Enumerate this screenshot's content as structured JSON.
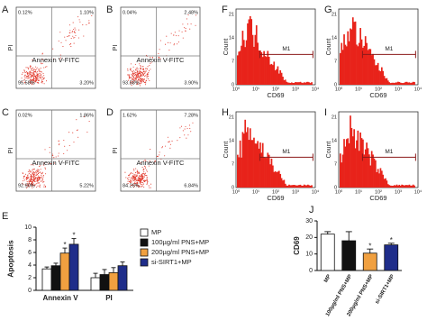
{
  "flow_cytometry": {
    "x_label": "Annexin V-FITC",
    "y_label": "PI",
    "panels": [
      {
        "label": "A",
        "upper_left": "0.12%",
        "upper_right": "1.10%",
        "lower_left": "95.58%",
        "lower_right": "3.20%"
      },
      {
        "label": "B",
        "upper_left": "0.04%",
        "upper_right": "2.48%",
        "lower_left": "93.58%",
        "lower_right": "3.90%"
      },
      {
        "label": "C",
        "upper_left": "0.02%",
        "upper_right": "1.86%",
        "lower_left": "92.90%",
        "lower_right": "5.22%"
      },
      {
        "label": "D",
        "upper_left": "1.62%",
        "upper_right": "7.28%",
        "lower_left": "84.26%",
        "lower_right": "6.84%"
      }
    ]
  },
  "cd69_histograms": {
    "y_label": "Count",
    "x_label": "CD69",
    "gate": "M1",
    "x_tick_labels": [
      "10⁰",
      "10¹",
      "10²",
      "10³",
      "10⁴"
    ],
    "panels": [
      {
        "label": "F",
        "y_tick_labels": [
          "0",
          "7",
          "14",
          "21"
        ]
      },
      {
        "label": "G",
        "y_tick_labels": [
          "0",
          "7",
          "14",
          "21"
        ]
      },
      {
        "label": "H",
        "y_tick_labels": [
          "0",
          "7",
          "14",
          "21"
        ]
      },
      {
        "label": "I",
        "y_tick_labels": [
          "0",
          "7",
          "14",
          "21"
        ]
      }
    ]
  },
  "chart_data": [
    {
      "panel_label": "E",
      "type": "bar",
      "ylabel": "Apoptosis",
      "categories": [
        "Annexin V",
        "PI"
      ],
      "series": [
        {
          "name": "MP",
          "color": "#ffffff",
          "values": [
            3.4,
            2.0
          ],
          "errors": [
            0.3,
            0.7
          ]
        },
        {
          "name": "100µg/ml PNS+MP",
          "color": "#111111",
          "values": [
            3.9,
            2.5
          ],
          "errors": [
            0.4,
            0.8
          ]
        },
        {
          "name": "200µg/ml PNS+MP",
          "color": "#f0a040",
          "values": [
            5.9,
            2.8
          ],
          "errors": [
            0.8,
            0.8
          ]
        },
        {
          "name": "si-SIRT1+MP",
          "color": "#1f2d8a",
          "values": [
            7.3,
            3.9
          ],
          "errors": [
            0.9,
            0.6
          ]
        }
      ],
      "ylim": [
        0,
        10
      ],
      "yticks": [
        0,
        2,
        4,
        6,
        8,
        10
      ],
      "annotations": [
        {
          "text": "*",
          "series": 2,
          "category": 0
        },
        {
          "text": "*",
          "series": 3,
          "category": 0
        }
      ]
    },
    {
      "panel_label": "J",
      "type": "bar",
      "ylabel": "CD69",
      "categories": [
        "MP",
        "100µg/ml PNS+MP",
        "200µg/ml PNS+MP",
        "si-SIRT1+MP"
      ],
      "values": [
        22,
        18,
        10.5,
        15.5
      ],
      "errors": [
        1.5,
        5.5,
        2.5,
        1.0
      ],
      "colors": [
        "#ffffff",
        "#111111",
        "#f0a040",
        "#1f2d8a"
      ],
      "ylim": [
        0,
        30
      ],
      "yticks": [
        0,
        10,
        20,
        30
      ],
      "annotations": [
        {
          "text": "*",
          "category": 2
        },
        {
          "text": "*",
          "category": 3
        }
      ]
    }
  ]
}
